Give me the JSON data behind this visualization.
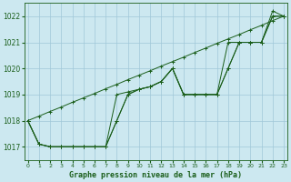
{
  "title": "Graphe pression niveau de la mer (hPa)",
  "xlabel_ticks": [
    0,
    1,
    2,
    3,
    4,
    5,
    6,
    7,
    8,
    9,
    10,
    11,
    12,
    13,
    14,
    15,
    16,
    17,
    18,
    19,
    20,
    21,
    22,
    23
  ],
  "ylim": [
    1016.5,
    1022.5
  ],
  "yticks": [
    1017,
    1018,
    1019,
    1020,
    1021,
    1022
  ],
  "xlim": [
    -0.3,
    23.3
  ],
  "bg_color": "#cce8f0",
  "grid_color": "#a0c8d8",
  "line_color": "#1a5e1a",
  "series": [
    [
      1018.0,
      1018.17,
      1018.35,
      1018.52,
      1018.7,
      1018.87,
      1019.04,
      1019.22,
      1019.39,
      1019.57,
      1019.74,
      1019.91,
      1020.09,
      1020.26,
      1020.43,
      1020.61,
      1020.78,
      1020.96,
      1021.13,
      1021.3,
      1021.48,
      1021.65,
      1021.83,
      1022.0
    ],
    [
      1018.0,
      1017.1,
      1017.0,
      1017.0,
      1017.0,
      1017.0,
      1017.0,
      1017.0,
      1019.0,
      1019.1,
      1019.2,
      1019.3,
      1019.5,
      1020.0,
      1019.0,
      1019.0,
      1019.0,
      1019.0,
      1021.0,
      1021.0,
      1021.0,
      1021.0,
      1022.0,
      1022.0
    ],
    [
      1018.0,
      1017.1,
      1017.0,
      1017.0,
      1017.0,
      1017.0,
      1017.0,
      1017.0,
      1018.0,
      1019.0,
      1019.2,
      1019.3,
      1019.5,
      1020.0,
      1019.0,
      1019.0,
      1019.0,
      1019.0,
      1020.0,
      1021.0,
      1021.0,
      1021.0,
      1022.0,
      1022.0
    ],
    [
      1018.0,
      1017.1,
      1017.0,
      1017.0,
      1017.0,
      1017.0,
      1017.0,
      1017.0,
      1018.0,
      1019.0,
      1019.2,
      1019.3,
      1019.5,
      1020.0,
      1019.0,
      1019.0,
      1019.0,
      1019.0,
      1020.0,
      1021.0,
      1021.0,
      1021.0,
      1022.2,
      1022.0
    ]
  ]
}
